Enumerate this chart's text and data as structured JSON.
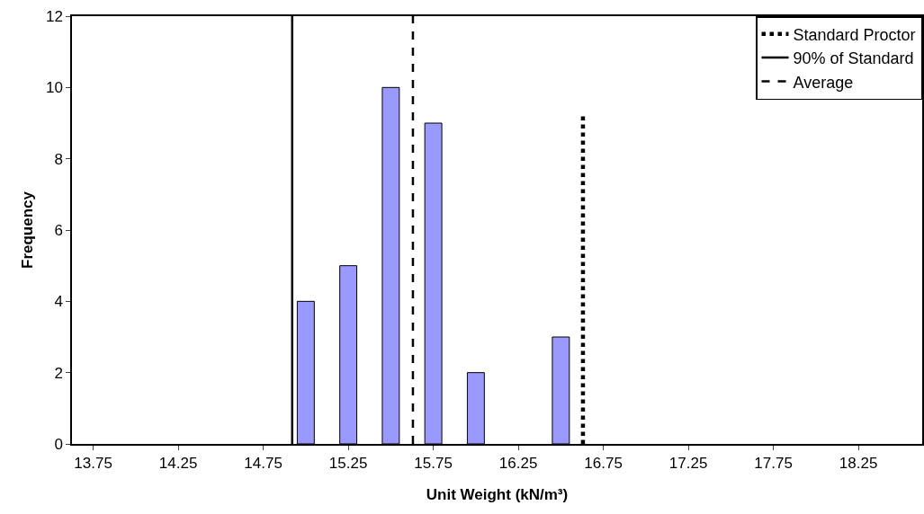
{
  "chart_data": {
    "type": "bar",
    "xlabel": "Unit Weight (kN/m³)",
    "ylabel": "Frequency",
    "xlim": [
      13.625,
      18.625
    ],
    "xticks": [
      13.75,
      14.25,
      14.75,
      15.25,
      15.75,
      16.25,
      16.75,
      17.25,
      17.75,
      18.25
    ],
    "ylim": [
      0,
      12
    ],
    "yticks": [
      0,
      2,
      4,
      6,
      8,
      10,
      12
    ],
    "grid": false,
    "legend": "top right",
    "series": [
      {
        "color": "#9999ff",
        "x": [
          15.0,
          15.25,
          15.5,
          15.75,
          16.0,
          16.5
        ],
        "values": [
          4,
          5,
          10,
          9,
          2,
          3
        ]
      },
      {
        "type": "line",
        "name": "Standard Proctor",
        "color": "#000000",
        "line_style": "dotted",
        "x": [
          16.63,
          16.63
        ],
        "values": [
          0,
          9.2
        ]
      },
      {
        "type": "line",
        "name": "90% of Standard",
        "color": "#000000",
        "line_style": "solid",
        "x": [
          14.92,
          14.92
        ],
        "values": [
          0,
          12
        ]
      },
      {
        "type": "line",
        "name": "Average",
        "color": "#000000",
        "line_style": "dashed",
        "x": [
          15.63,
          15.63
        ],
        "values": [
          0,
          12
        ]
      }
    ]
  }
}
